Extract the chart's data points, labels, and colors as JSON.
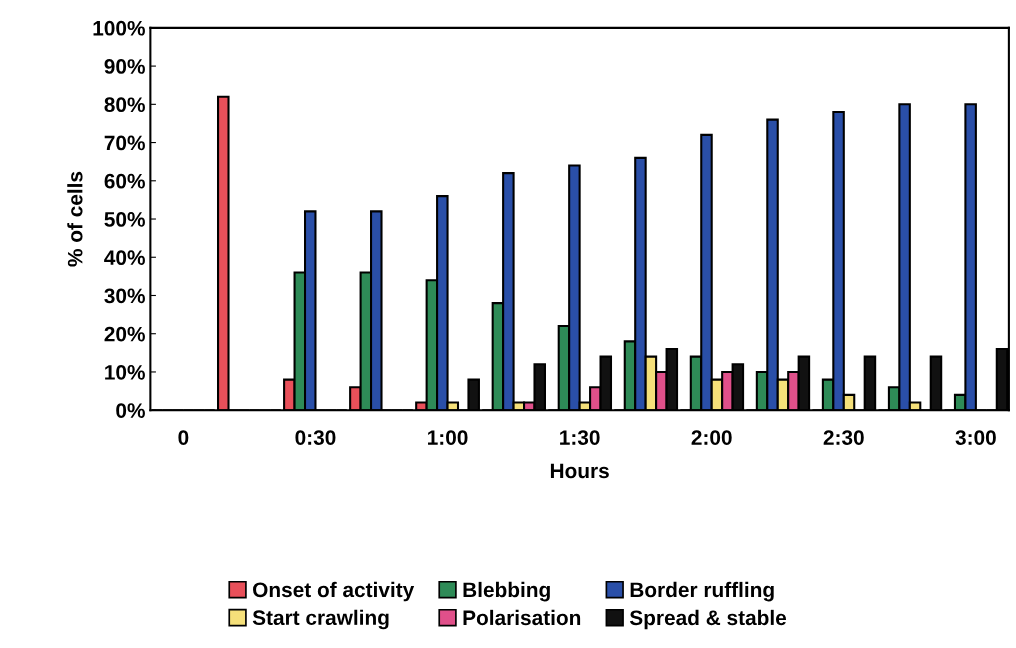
{
  "chart_data": {
    "type": "bar",
    "xlabel": "Hours",
    "ylabel": "% of cells",
    "categories": [
      "0",
      null,
      "0:30",
      null,
      "1:00",
      null,
      "1:30",
      null,
      "2:00",
      null,
      "2:30",
      null,
      "3:00"
    ],
    "series": [
      {
        "name": "Onset of activity",
        "color": "#e8505a",
        "values": [
          0,
          82,
          8,
          6,
          2,
          0,
          0,
          0,
          0,
          0,
          0,
          0,
          0
        ]
      },
      {
        "name": "Blebbing",
        "color": "#2e8b57",
        "values": [
          0,
          0,
          36,
          36,
          34,
          28,
          22,
          18,
          14,
          10,
          8,
          6,
          4
        ]
      },
      {
        "name": "Border ruffling",
        "color": "#2a4fa8",
        "values": [
          0,
          0,
          52,
          52,
          56,
          62,
          64,
          66,
          72,
          76,
          78,
          80,
          80
        ]
      },
      {
        "name": "Start crawling",
        "color": "#f5e07a",
        "values": [
          0,
          0,
          0,
          0,
          2,
          2,
          2,
          14,
          8,
          8,
          4,
          2,
          0
        ]
      },
      {
        "name": "Polarisation",
        "color": "#e0508a",
        "values": [
          0,
          0,
          0,
          0,
          0,
          2,
          6,
          10,
          10,
          10,
          0,
          0,
          0
        ]
      },
      {
        "name": "Spread & stable",
        "color": "#111111",
        "values": [
          0,
          0,
          0,
          0,
          8,
          12,
          14,
          16,
          12,
          14,
          14,
          14,
          16
        ]
      }
    ],
    "ylim": [
      0,
      100
    ],
    "yticks": [
      {
        "value": 0,
        "label": "0%"
      },
      {
        "value": 10,
        "label": "10%"
      },
      {
        "value": 20,
        "label": "20%"
      },
      {
        "value": 30,
        "label": "30%"
      },
      {
        "value": 40,
        "label": "40%"
      },
      {
        "value": 50,
        "label": "50%"
      },
      {
        "value": 60,
        "label": "60%"
      },
      {
        "value": 70,
        "label": "70%"
      },
      {
        "value": 80,
        "label": "80%"
      },
      {
        "value": 90,
        "label": "90%"
      },
      {
        "value": 100,
        "label": "100%"
      }
    ],
    "grid": false,
    "legend": "bottom"
  }
}
